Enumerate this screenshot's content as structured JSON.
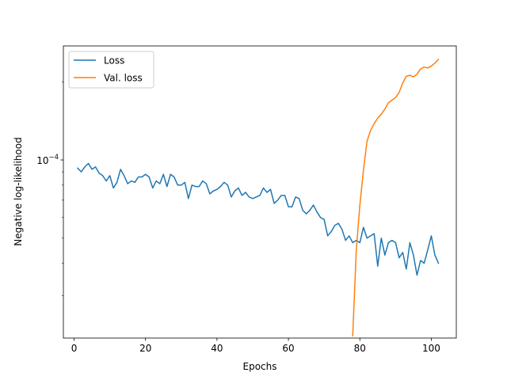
{
  "chart_data": {
    "type": "line",
    "title": "",
    "xlabel": "Epochs",
    "ylabel": "Negative log-likelihood",
    "xlim": [
      -3,
      107
    ],
    "ylim": [
      2.06e-05,
      0.000275
    ],
    "yscale": "log",
    "xticks": [
      0,
      20,
      40,
      60,
      80,
      100
    ],
    "yticks": [
      0.0001
    ],
    "ytick_labels": [
      "10",
      "−4"
    ],
    "grid": false,
    "legend_position": "upper left",
    "series": [
      {
        "name": "Loss",
        "color": "#1f77b4",
        "x": [
          1,
          2,
          3,
          4,
          5,
          6,
          7,
          8,
          9,
          10,
          11,
          12,
          13,
          14,
          15,
          16,
          17,
          18,
          19,
          20,
          21,
          22,
          23,
          24,
          25,
          26,
          27,
          28,
          29,
          30,
          31,
          32,
          33,
          34,
          35,
          36,
          37,
          38,
          39,
          40,
          41,
          42,
          43,
          44,
          45,
          46,
          47,
          48,
          49,
          50,
          51,
          52,
          53,
          54,
          55,
          56,
          57,
          58,
          59,
          60,
          61,
          62,
          63,
          64,
          65,
          66,
          67,
          68,
          69,
          70,
          71,
          72,
          73,
          74,
          75,
          76,
          77,
          78,
          79,
          80,
          81,
          82,
          83,
          84,
          85,
          86,
          87,
          88,
          89,
          90,
          91,
          92,
          93,
          94,
          95,
          96,
          97,
          98,
          99,
          100,
          101,
          102
        ],
        "values": [
          9.3e-05,
          9e-05,
          9.4e-05,
          9.7e-05,
          9.2e-05,
          9.4e-05,
          8.9e-05,
          8.7e-05,
          8.3e-05,
          8.7e-05,
          7.8e-05,
          8.2e-05,
          9.2e-05,
          8.7e-05,
          8.1e-05,
          8.3e-05,
          8.2e-05,
          8.6e-05,
          8.6e-05,
          8.8e-05,
          8.6e-05,
          7.8e-05,
          8.3e-05,
          8.1e-05,
          8.8e-05,
          7.9e-05,
          8.8e-05,
          8.6e-05,
          8e-05,
          8e-05,
          8.2e-05,
          7.1e-05,
          8e-05,
          7.9e-05,
          7.9e-05,
          8.3e-05,
          8.1e-05,
          7.4e-05,
          7.6e-05,
          7.7e-05,
          7.9e-05,
          8.2e-05,
          8e-05,
          7.2e-05,
          7.6e-05,
          7.8e-05,
          7.3e-05,
          7.5e-05,
          7.2e-05,
          7.1e-05,
          7.2e-05,
          7.3e-05,
          7.8e-05,
          7.5e-05,
          7.7e-05,
          6.8e-05,
          7e-05,
          7.3e-05,
          7.3e-05,
          6.6e-05,
          6.6e-05,
          7.2e-05,
          7.1e-05,
          6.4e-05,
          6.2e-05,
          6.4e-05,
          6.7e-05,
          6.3e-05,
          6e-05,
          5.9e-05,
          5.1e-05,
          5.3e-05,
          5.6e-05,
          5.7e-05,
          5.4e-05,
          4.9e-05,
          5.1e-05,
          4.8e-05,
          4.9e-05,
          4.8e-05,
          5.5e-05,
          5e-05,
          5.1e-05,
          5.2e-05,
          3.9e-05,
          5e-05,
          4.3e-05,
          4.8e-05,
          4.9e-05,
          4.8e-05,
          4.2e-05,
          4.4e-05,
          3.8e-05,
          4.8e-05,
          4.3e-05,
          3.6e-05,
          4.1e-05,
          4e-05,
          4.5e-05,
          5.1e-05,
          4.3e-05,
          4e-05
        ]
      },
      {
        "name": "Val. loss",
        "color": "#ff7f0e",
        "x": [
          78,
          79,
          80,
          81,
          82,
          83,
          84,
          85,
          86,
          87,
          88,
          89,
          90,
          91,
          92,
          93,
          94,
          95,
          96,
          97,
          98,
          99,
          100,
          101,
          102
        ],
        "values": [
          2.1e-05,
          4.5e-05,
          6.7e-05,
          9.1e-05,
          0.000118,
          0.00013,
          0.000138,
          0.000145,
          0.00015,
          0.000157,
          0.000166,
          0.00017,
          0.000174,
          0.000182,
          0.000198,
          0.00021,
          0.000212,
          0.000209,
          0.000214,
          0.000224,
          0.000228,
          0.000226,
          0.00023,
          0.000236,
          0.000244
        ]
      }
    ]
  }
}
